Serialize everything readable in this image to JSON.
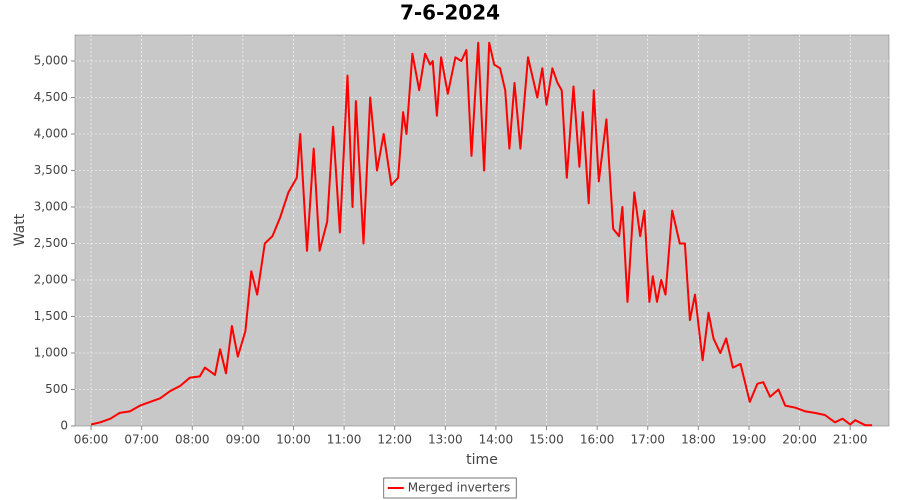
{
  "chart_data": {
    "type": "line",
    "title": "7-6-2024",
    "x_label": "time",
    "y_label": "Watt",
    "x": [
      "06:00",
      "06:11",
      "06:23",
      "06:34",
      "06:46",
      "06:58",
      "07:10",
      "07:22",
      "07:34",
      "07:46",
      "07:57",
      "08:09",
      "08:15",
      "08:27",
      "08:33",
      "08:40",
      "08:47",
      "08:54",
      "09:03",
      "09:10",
      "09:17",
      "09:26",
      "09:35",
      "09:44",
      "09:54",
      "10:04",
      "10:08",
      "10:16",
      "10:24",
      "10:31",
      "10:40",
      "10:47",
      "10:55",
      "11:04",
      "11:10",
      "11:14",
      "11:23",
      "11:31",
      "11:39",
      "11:47",
      "11:56",
      "12:04",
      "12:10",
      "12:14",
      "12:21",
      "12:29",
      "12:36",
      "12:42",
      "12:45",
      "12:50",
      "12:55",
      "13:03",
      "13:12",
      "13:19",
      "13:25",
      "13:31",
      "13:39",
      "13:46",
      "13:52",
      "13:58",
      "14:05",
      "14:11",
      "14:16",
      "14:22",
      "14:29",
      "14:38",
      "14:49",
      "14:55",
      "15:00",
      "15:07",
      "15:13",
      "15:18",
      "15:24",
      "15:32",
      "15:39",
      "15:43",
      "15:50",
      "15:56",
      "16:02",
      "16:11",
      "16:19",
      "16:26",
      "16:30",
      "16:36",
      "16:44",
      "16:51",
      "16:56",
      "17:02",
      "17:06",
      "17:11",
      "17:16",
      "17:21",
      "17:29",
      "17:38",
      "17:44",
      "17:50",
      "17:56",
      "18:05",
      "18:12",
      "18:18",
      "18:26",
      "18:33",
      "18:41",
      "18:50",
      "19:01",
      "19:10",
      "19:17",
      "19:25",
      "19:35",
      "19:43",
      "19:55",
      "20:07",
      "20:18",
      "20:30",
      "20:42",
      "20:51",
      "21:00",
      "21:06",
      "21:18",
      "21:26"
    ],
    "series": [
      {
        "name": "Merged inverters",
        "color": "#ff0000",
        "values": [
          20,
          50,
          100,
          180,
          200,
          280,
          330,
          380,
          480,
          550,
          660,
          680,
          800,
          700,
          1050,
          720,
          1370,
          950,
          1300,
          2120,
          1800,
          2500,
          2600,
          2850,
          3200,
          3400,
          4000,
          2400,
          3800,
          2400,
          2800,
          4100,
          2650,
          4800,
          3000,
          4450,
          2500,
          4500,
          3500,
          4000,
          3300,
          3400,
          4300,
          4000,
          5100,
          4600,
          5100,
          4950,
          5000,
          4250,
          5050,
          4550,
          5050,
          5000,
          5150,
          3700,
          5250,
          3500,
          5250,
          4950,
          4900,
          4600,
          3800,
          4700,
          3800,
          5050,
          4500,
          4900,
          4400,
          4900,
          4700,
          4600,
          3400,
          4650,
          3550,
          4300,
          3050,
          4600,
          3350,
          4200,
          2700,
          2600,
          3000,
          1700,
          3200,
          2600,
          2950,
          1700,
          2050,
          1700,
          2000,
          1800,
          2950,
          2500,
          2500,
          1450,
          1800,
          900,
          1550,
          1200,
          1000,
          1200,
          800,
          850,
          330,
          580,
          600,
          400,
          500,
          280,
          250,
          200,
          180,
          150,
          50,
          100,
          20,
          80,
          10,
          10
        ]
      }
    ],
    "xlim": [
      "05:41",
      "21:46"
    ],
    "xticks": [
      "06:00",
      "07:00",
      "08:00",
      "09:00",
      "10:00",
      "11:00",
      "12:00",
      "13:00",
      "14:00",
      "15:00",
      "16:00",
      "17:00",
      "18:00",
      "19:00",
      "20:00",
      "21:00"
    ],
    "ylim": [
      0,
      5356
    ],
    "yticks": [
      0,
      500,
      {
        "value": 1000,
        "label": "1,000"
      },
      {
        "value": 1500,
        "label": "1,500"
      },
      {
        "value": 2000,
        "label": "2,000"
      },
      {
        "value": 2500,
        "label": "2,500"
      },
      {
        "value": 3000,
        "label": "3,000"
      },
      {
        "value": 3500,
        "label": "3,500"
      },
      {
        "value": 4000,
        "label": "4,000"
      },
      {
        "value": 4500,
        "label": "4,500"
      },
      {
        "value": 5000,
        "label": "5,000"
      }
    ],
    "grid": true,
    "legend_position": "bottom"
  }
}
